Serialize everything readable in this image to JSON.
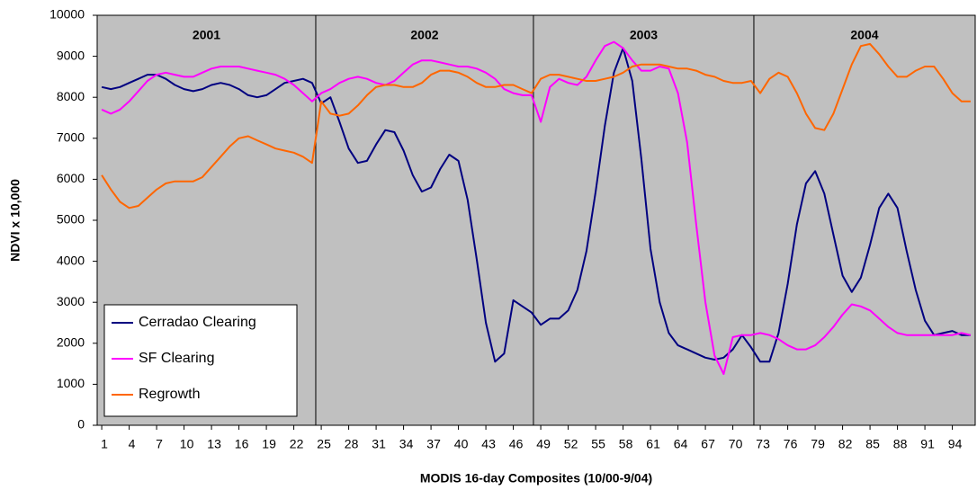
{
  "chart_data": {
    "type": "line",
    "x_label": "MODIS 16-day Composites (10/00-9/04)",
    "y_label": "NDVI x 10,000",
    "xlim": [
      0.5,
      96.5
    ],
    "xticks": [
      1,
      4,
      7,
      10,
      13,
      16,
      19,
      22,
      25,
      28,
      31,
      34,
      37,
      40,
      43,
      46,
      49,
      52,
      55,
      58,
      61,
      64,
      67,
      70,
      73,
      76,
      79,
      82,
      85,
      88,
      91,
      94
    ],
    "ylim": [
      0,
      10000
    ],
    "yticks": [
      0,
      1000,
      2000,
      3000,
      4000,
      5000,
      6000,
      7000,
      8000,
      9000,
      10000
    ],
    "grid": false,
    "background": "#c0c0c0",
    "legend": "bottom-left",
    "periods": [
      {
        "label": "2001",
        "start": 0.5,
        "end": 24.4
      },
      {
        "label": "2002",
        "start": 24.4,
        "end": 48.2
      },
      {
        "label": "2003",
        "start": 48.2,
        "end": 72.3
      },
      {
        "label": "2004",
        "start": 72.3,
        "end": 96.5
      }
    ],
    "x": [
      1,
      2,
      3,
      4,
      5,
      6,
      7,
      8,
      9,
      10,
      11,
      12,
      13,
      14,
      15,
      16,
      17,
      18,
      19,
      20,
      21,
      22,
      23,
      24,
      25,
      26,
      27,
      28,
      29,
      30,
      31,
      32,
      33,
      34,
      35,
      36,
      37,
      38,
      39,
      40,
      41,
      42,
      43,
      44,
      45,
      46,
      47,
      48,
      49,
      50,
      51,
      52,
      53,
      54,
      55,
      56,
      57,
      58,
      59,
      60,
      61,
      62,
      63,
      64,
      65,
      66,
      67,
      68,
      69,
      70,
      71,
      72,
      73,
      74,
      75,
      76,
      77,
      78,
      79,
      80,
      81,
      82,
      83,
      84,
      85,
      86,
      87,
      88,
      89,
      90,
      91,
      92,
      93,
      94,
      95,
      96
    ],
    "series": [
      {
        "name": "Cerradao Clearing",
        "color": "#000080",
        "values": [
          8250,
          8200,
          8250,
          8350,
          8450,
          8550,
          8550,
          8450,
          8300,
          8200,
          8150,
          8200,
          8300,
          8350,
          8300,
          8200,
          8050,
          8000,
          8050,
          8200,
          8350,
          8400,
          8450,
          8350,
          7850,
          8000,
          7400,
          6750,
          6400,
          6450,
          6850,
          7200,
          7150,
          6700,
          6100,
          5700,
          5800,
          6250,
          6600,
          6450,
          5500,
          4050,
          2500,
          1550,
          1750,
          3050,
          2900,
          2750,
          2450,
          2600,
          2600,
          2800,
          3300,
          4250,
          5700,
          7300,
          8600,
          9200,
          8400,
          6500,
          4300,
          3000,
          2250,
          1950,
          1850,
          1750,
          1650,
          1600,
          1650,
          1850,
          2200,
          1900,
          1550,
          1550,
          2250,
          3450,
          4900,
          5900,
          6200,
          5650,
          4650,
          3650,
          3250,
          3600,
          4400,
          5300,
          5650,
          5300,
          4250,
          3300,
          2550,
          2200,
          2250,
          2300,
          2200,
          2200
        ]
      },
      {
        "name": "SF Clearing",
        "color": "#ff00ff",
        "values": [
          7700,
          7600,
          7700,
          7900,
          8150,
          8400,
          8550,
          8600,
          8550,
          8500,
          8500,
          8600,
          8700,
          8750,
          8750,
          8750,
          8700,
          8650,
          8600,
          8550,
          8450,
          8300,
          8100,
          7900,
          8100,
          8200,
          8350,
          8450,
          8500,
          8450,
          8350,
          8300,
          8400,
          8600,
          8800,
          8900,
          8900,
          8850,
          8800,
          8750,
          8750,
          8700,
          8600,
          8450,
          8200,
          8100,
          8050,
          8050,
          7400,
          8250,
          8450,
          8350,
          8300,
          8500,
          8900,
          9250,
          9350,
          9200,
          8900,
          8650,
          8650,
          8750,
          8700,
          8100,
          6900,
          4900,
          3000,
          1700,
          1250,
          2150,
          2200,
          2200,
          2250,
          2200,
          2100,
          1950,
          1850,
          1850,
          1950,
          2150,
          2400,
          2700,
          2950,
          2900,
          2800,
          2600,
          2400,
          2250,
          2200,
          2200,
          2200,
          2200,
          2200,
          2200,
          2250,
          2200
        ]
      },
      {
        "name": "Regrowth",
        "color": "#ff6600",
        "values": [
          6100,
          5750,
          5450,
          5300,
          5350,
          5550,
          5750,
          5900,
          5950,
          5950,
          5950,
          6050,
          6300,
          6550,
          6800,
          7000,
          7050,
          6950,
          6850,
          6750,
          6700,
          6650,
          6550,
          6400,
          7900,
          7600,
          7550,
          7600,
          7800,
          8050,
          8250,
          8300,
          8300,
          8250,
          8250,
          8350,
          8550,
          8650,
          8650,
          8600,
          8500,
          8350,
          8250,
          8250,
          8300,
          8300,
          8200,
          8100,
          8450,
          8550,
          8550,
          8500,
          8450,
          8400,
          8400,
          8450,
          8500,
          8600,
          8750,
          8800,
          8800,
          8800,
          8750,
          8700,
          8700,
          8650,
          8550,
          8500,
          8400,
          8350,
          8350,
          8400,
          8100,
          8450,
          8600,
          8500,
          8100,
          7600,
          7250,
          7200,
          7600,
          8200,
          8800,
          9250,
          9300,
          9050,
          8750,
          8500,
          8500,
          8650,
          8750,
          8750,
          8450,
          8100,
          7900,
          7900
        ]
      }
    ]
  }
}
